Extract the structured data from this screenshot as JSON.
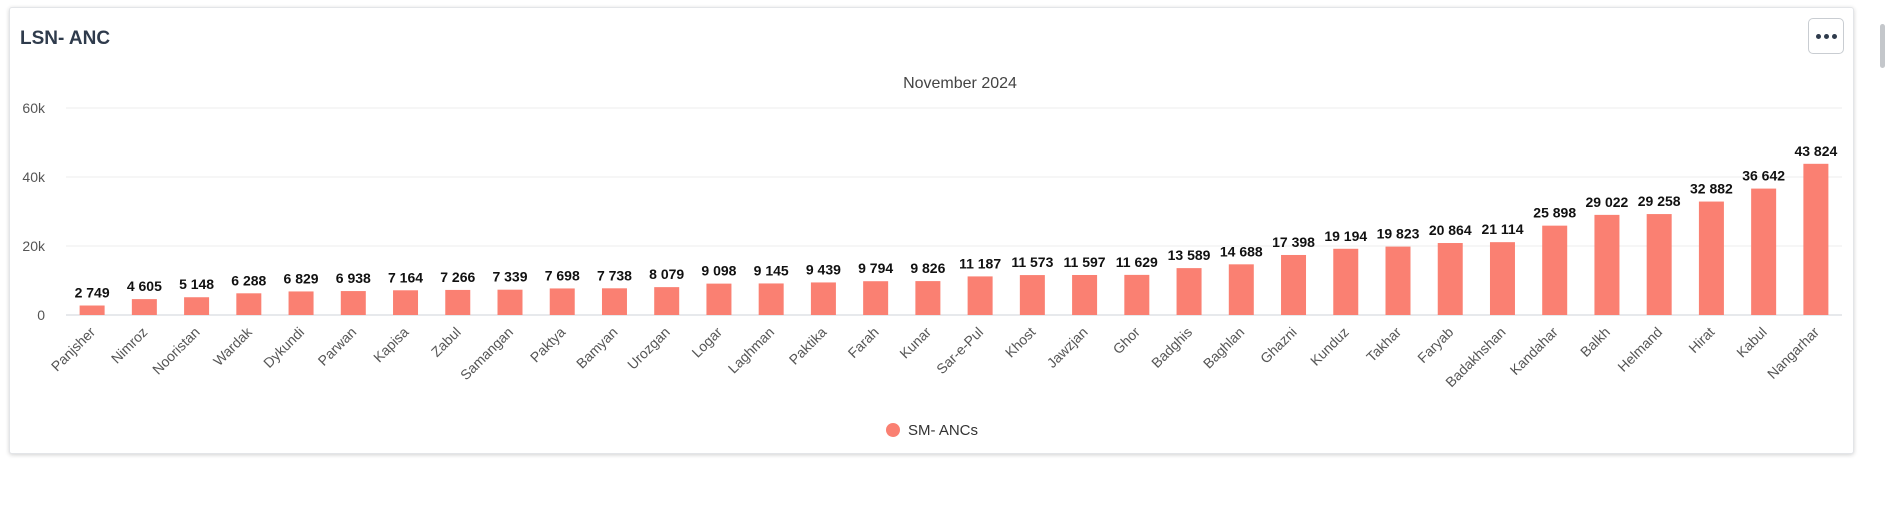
{
  "card": {
    "title": "LSN- ANC",
    "menu_icon": "more-horizontal-icon"
  },
  "colors": {
    "bar": "#fa8072",
    "grid": "#ececec",
    "axis_text": "#555555",
    "label_text": "#111111"
  },
  "chart_data": {
    "type": "bar",
    "title": "November 2024",
    "xlabel": "",
    "ylabel": "",
    "ylim": [
      0,
      60000
    ],
    "yticks": [
      0,
      20000,
      40000,
      60000
    ],
    "ytick_labels": [
      "0",
      "20k",
      "40k",
      "60k"
    ],
    "grid": true,
    "legend_position": "bottom-center",
    "categories": [
      "Panjsher",
      "Nimroz",
      "Nooristan",
      "Wardak",
      "Dykundi",
      "Parwan",
      "Kapisa",
      "Zabul",
      "Samangan",
      "Paktya",
      "Bamyan",
      "Urozgan",
      "Logar",
      "Laghman",
      "Paktika",
      "Farah",
      "Kunar",
      "Sar-e-Pul",
      "Khost",
      "Jawzjan",
      "Ghor",
      "Badghis",
      "Baghlan",
      "Ghazni",
      "Kunduz",
      "Takhar",
      "Faryab",
      "Badakhshan",
      "Kandahar",
      "Balkh",
      "Helmand",
      "Hirat",
      "Kabul",
      "Nangarhar"
    ],
    "series": [
      {
        "name": "SM- ANCs",
        "color": "#fa8072",
        "values": [
          2749,
          4605,
          5148,
          6288,
          6829,
          6938,
          7164,
          7266,
          7339,
          7698,
          7738,
          8079,
          9098,
          9145,
          9439,
          9794,
          9826,
          11187,
          11573,
          11597,
          11629,
          13589,
          14688,
          17398,
          19194,
          19823,
          20864,
          21114,
          25898,
          29022,
          29258,
          32882,
          36642,
          43824
        ],
        "data_labels": [
          "2 749",
          "4 605",
          "5 148",
          "6 288",
          "6 829",
          "6 938",
          "7 164",
          "7 266",
          "7 339",
          "7 698",
          "7 738",
          "8 079",
          "9 098",
          "9 145",
          "9 439",
          "9 794",
          "9 826",
          "11 187",
          "11 573",
          "11 597",
          "11 629",
          "13 589",
          "14 688",
          "17 398",
          "19 194",
          "19 823",
          "20 864",
          "21 114",
          "25 898",
          "29 022",
          "29 258",
          "32 882",
          "36 642",
          "43 824"
        ]
      }
    ]
  }
}
